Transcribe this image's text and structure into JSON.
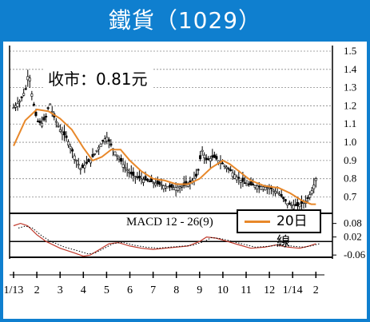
{
  "title": "鐵貨（1029）",
  "close_label": "收市：0.81元",
  "legend_label": "20日線",
  "macd_label": "MACD 12 - 26(9)",
  "colors": {
    "frame": "#0f7fcf",
    "ma_line": "#e8882a",
    "candle": "#000000",
    "macd_line": "#c0392b"
  },
  "chart_data": [
    {
      "type": "candlestick",
      "title": "鐵貨（1029）",
      "ylim": [
        0.61,
        1.5
      ],
      "yticks": [
        1.5,
        1.4,
        1.3,
        1.2,
        1.1,
        1.0,
        0.9,
        0.8,
        0.7
      ],
      "ytick_labels": [
        "1.5",
        "1.4",
        "1.3",
        "1.2",
        "1.1",
        "1.0",
        "0.9",
        "0.8",
        "0.7"
      ],
      "xtick_labels": [
        "1/13",
        "2",
        "3",
        "4",
        "5",
        "6",
        "7",
        "8",
        "9",
        "10",
        "11",
        "12",
        "1/14",
        "2"
      ],
      "price_path": [
        [
          0,
          1.19
        ],
        [
          0.3,
          1.23
        ],
        [
          0.55,
          1.3
        ],
        [
          0.65,
          1.4
        ],
        [
          0.8,
          1.25
        ],
        [
          1.0,
          1.12
        ],
        [
          1.2,
          1.1
        ],
        [
          1.4,
          1.14
        ],
        [
          1.55,
          1.22
        ],
        [
          1.7,
          1.15
        ],
        [
          2.0,
          1.07
        ],
        [
          2.3,
          1.02
        ],
        [
          2.6,
          0.93
        ],
        [
          2.9,
          0.85
        ],
        [
          3.1,
          0.88
        ],
        [
          3.3,
          0.9
        ],
        [
          3.55,
          0.95
        ],
        [
          3.8,
          1.0
        ],
        [
          4.0,
          1.03
        ],
        [
          4.2,
          0.98
        ],
        [
          4.5,
          0.92
        ],
        [
          4.8,
          0.86
        ],
        [
          5.1,
          0.82
        ],
        [
          5.5,
          0.8
        ],
        [
          6.0,
          0.78
        ],
        [
          6.5,
          0.76
        ],
        [
          6.9,
          0.75
        ],
        [
          7.3,
          0.76
        ],
        [
          7.6,
          0.78
        ],
        [
          7.9,
          0.82
        ],
        [
          8.1,
          0.96
        ],
        [
          8.3,
          0.9
        ],
        [
          8.6,
          0.92
        ],
        [
          8.9,
          0.89
        ],
        [
          9.2,
          0.86
        ],
        [
          9.6,
          0.81
        ],
        [
          10.0,
          0.77
        ],
        [
          10.5,
          0.76
        ],
        [
          11.0,
          0.75
        ],
        [
          11.4,
          0.72
        ],
        [
          11.8,
          0.66
        ],
        [
          12.2,
          0.65
        ],
        [
          12.6,
          0.68
        ],
        [
          12.85,
          0.74
        ],
        [
          13.0,
          0.8
        ]
      ],
      "ma20_path": [
        [
          0,
          0.98
        ],
        [
          0.5,
          1.12
        ],
        [
          1.0,
          1.18
        ],
        [
          1.5,
          1.17
        ],
        [
          2.0,
          1.13
        ],
        [
          2.5,
          1.07
        ],
        [
          3.0,
          0.97
        ],
        [
          3.4,
          0.9
        ],
        [
          3.8,
          0.92
        ],
        [
          4.2,
          0.96
        ],
        [
          4.6,
          0.96
        ],
        [
          5.0,
          0.9
        ],
        [
          5.5,
          0.84
        ],
        [
          6.0,
          0.8
        ],
        [
          6.5,
          0.79
        ],
        [
          7.0,
          0.77
        ],
        [
          7.5,
          0.77
        ],
        [
          8.0,
          0.8
        ],
        [
          8.5,
          0.86
        ],
        [
          9.0,
          0.9
        ],
        [
          9.3,
          0.88
        ],
        [
          9.7,
          0.84
        ],
        [
          10.2,
          0.79
        ],
        [
          10.8,
          0.76
        ],
        [
          11.4,
          0.75
        ],
        [
          11.9,
          0.72
        ],
        [
          12.4,
          0.68
        ],
        [
          12.8,
          0.66
        ],
        [
          13.0,
          0.66
        ]
      ]
    },
    {
      "type": "line",
      "title": "MACD 12 - 26(9)",
      "ylim": [
        -0.07,
        0.1
      ],
      "yticks": [
        0.08,
        0.02,
        -0.06
      ],
      "ytick_labels": [
        "0.08",
        "0.02",
        "-0.06"
      ],
      "macd_path": [
        [
          0,
          0.07
        ],
        [
          0.3,
          0.08
        ],
        [
          0.6,
          0.07
        ],
        [
          1.0,
          0.03
        ],
        [
          1.4,
          0.0
        ],
        [
          2.0,
          -0.03
        ],
        [
          2.6,
          -0.05
        ],
        [
          3.0,
          -0.065
        ],
        [
          3.3,
          -0.06
        ],
        [
          3.7,
          -0.035
        ],
        [
          4.1,
          -0.01
        ],
        [
          4.5,
          -0.005
        ],
        [
          5.0,
          -0.02
        ],
        [
          5.5,
          -0.03
        ],
        [
          6.0,
          -0.035
        ],
        [
          6.5,
          -0.03
        ],
        [
          7.0,
          -0.025
        ],
        [
          7.5,
          -0.02
        ],
        [
          8.0,
          0.0
        ],
        [
          8.3,
          0.02
        ],
        [
          8.7,
          0.015
        ],
        [
          9.2,
          0.0
        ],
        [
          9.7,
          -0.015
        ],
        [
          10.2,
          -0.03
        ],
        [
          10.8,
          -0.025
        ],
        [
          11.3,
          -0.015
        ],
        [
          11.8,
          -0.025
        ],
        [
          12.3,
          -0.03
        ],
        [
          12.7,
          -0.02
        ],
        [
          13.0,
          -0.01
        ]
      ]
    }
  ]
}
